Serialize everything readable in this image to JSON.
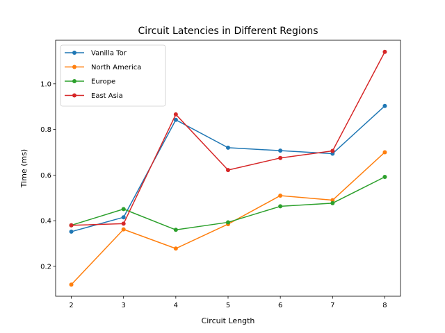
{
  "chart_data": {
    "type": "line",
    "title": "Circuit Latencies in Different Regions",
    "xlabel": "Circuit Length",
    "ylabel": "Time (ms)",
    "x": [
      2,
      3,
      4,
      5,
      6,
      7,
      8
    ],
    "xlim": [
      1.7,
      8.3
    ],
    "ylim": [
      0.069,
      1.191
    ],
    "xticks": [
      2,
      3,
      4,
      5,
      6,
      7,
      8
    ],
    "yticks": [
      0.2,
      0.4,
      0.6,
      0.8,
      1.0
    ],
    "ytick_labels": [
      "0.2",
      "0.4",
      "0.6",
      "0.8",
      "1.0"
    ],
    "grid": false,
    "legend_position": "upper-left",
    "series": [
      {
        "name": "Vanilla Tor",
        "color": "#1f77b4",
        "values": [
          0.352,
          0.415,
          0.842,
          0.72,
          0.707,
          0.694,
          0.903
        ]
      },
      {
        "name": "North America",
        "color": "#ff7f0e",
        "values": [
          0.12,
          0.362,
          0.278,
          0.385,
          0.51,
          0.49,
          0.7
        ]
      },
      {
        "name": "Europe",
        "color": "#2ca02c",
        "values": [
          0.38,
          0.451,
          0.36,
          0.393,
          0.463,
          0.477,
          0.592
        ]
      },
      {
        "name": "East Asia",
        "color": "#d62728",
        "values": [
          0.38,
          0.387,
          0.866,
          0.622,
          0.675,
          0.706,
          1.14
        ]
      }
    ]
  }
}
